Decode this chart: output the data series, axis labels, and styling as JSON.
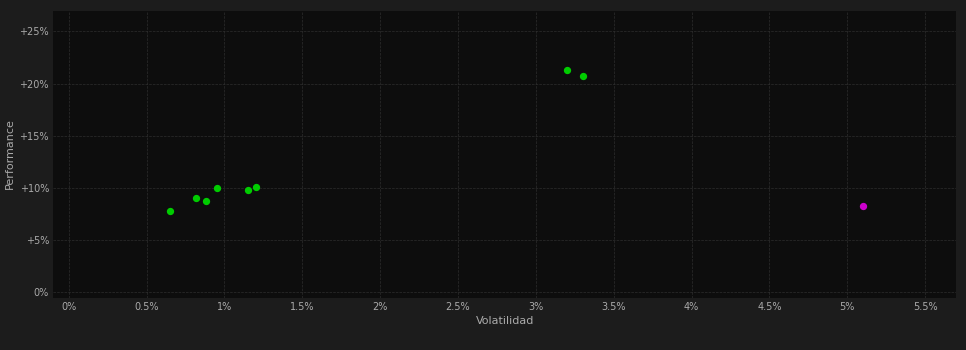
{
  "background_color": "#1c1c1c",
  "plot_bg_color": "#0d0d0d",
  "grid_color": "#2e2e2e",
  "text_color": "#aaaaaa",
  "xlabel": "Volatilidad",
  "ylabel": "Performance",
  "x_ticks": [
    0.0,
    0.005,
    0.01,
    0.015,
    0.02,
    0.025,
    0.03,
    0.035,
    0.04,
    0.045,
    0.05,
    0.055
  ],
  "y_ticks": [
    0.0,
    0.05,
    0.1,
    0.15,
    0.2,
    0.25
  ],
  "xlim": [
    -0.001,
    0.057
  ],
  "ylim": [
    -0.005,
    0.27
  ],
  "green_points": [
    [
      0.0065,
      0.078
    ],
    [
      0.0082,
      0.09
    ],
    [
      0.0088,
      0.087
    ],
    [
      0.0095,
      0.1
    ],
    [
      0.0115,
      0.098
    ],
    [
      0.012,
      0.101
    ],
    [
      0.032,
      0.213
    ],
    [
      0.033,
      0.207
    ]
  ],
  "magenta_points": [
    [
      0.051,
      0.083
    ]
  ],
  "green_color": "#00cc00",
  "magenta_color": "#cc00cc",
  "marker_size": 18,
  "axis_fontsize": 8,
  "tick_fontsize": 7
}
